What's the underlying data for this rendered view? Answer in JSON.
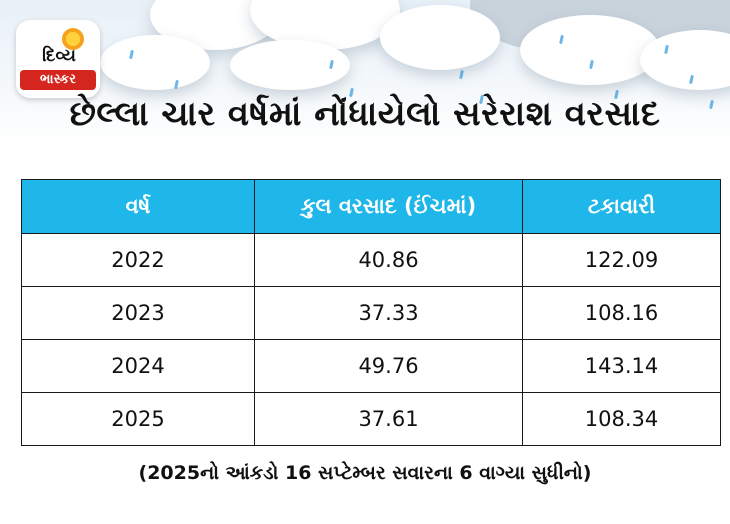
{
  "logo": {
    "line1": "દિવ્ય",
    "line2": "ભાસ્કર"
  },
  "title": "છેલ્લા ચાર વર્ષમાં નોંધાયેલો સરેરાશ વરસાદ",
  "table": {
    "headers": [
      "વર્ષ",
      "કુલ વરસાદ (ઈંચમાં)",
      "ટકાવારી"
    ],
    "rows": [
      [
        "2022",
        "40.86",
        "122.09"
      ],
      [
        "2023",
        "37.33",
        "108.16"
      ],
      [
        "2024",
        "49.76",
        "143.14"
      ],
      [
        "2025",
        "37.61",
        "108.34"
      ]
    ]
  },
  "footnote": "(2025નો આંકડો 16 સપ્ટેમ્બર સવારના 6 વાગ્યા સુધીનો)",
  "colors": {
    "header_bg": "#1fb6ea",
    "logo_red": "#d4261e",
    "rain": "#3e9ee0"
  }
}
